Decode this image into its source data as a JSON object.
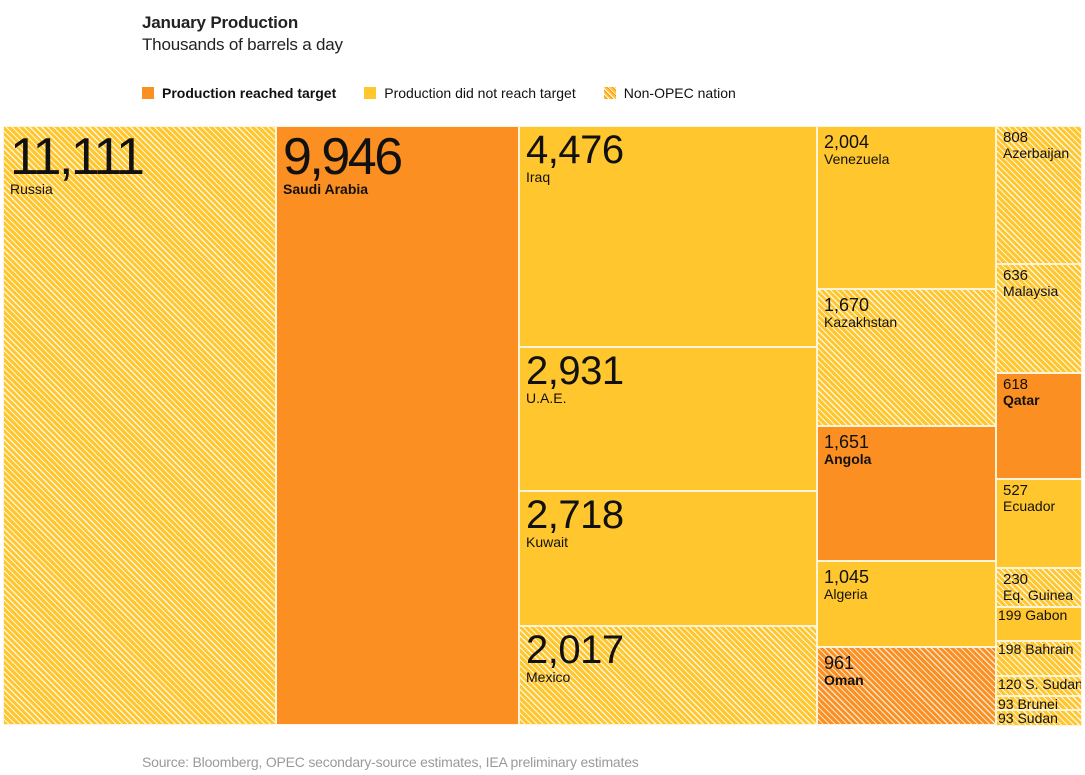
{
  "chart_data": {
    "type": "treemap",
    "title": "January Production",
    "subtitle": "Thousands of barrels a day",
    "legend": [
      {
        "key": "reached",
        "label": "Production reached target",
        "color": "#fb8f21"
      },
      {
        "key": "notreached",
        "label": "Production did not reach target",
        "color": "#ffc62e"
      },
      {
        "key": "nonopec",
        "label": "Non-OPEC nation",
        "pattern": "diagonal-hatch"
      }
    ],
    "legend_position": "top-left",
    "source": "Source: Bloomberg, OPEC secondary-source estimates, IEA preliminary estimates",
    "units": "thousand barrels per day",
    "items": [
      {
        "name": "Russia",
        "value": 11111,
        "label": "11,111",
        "status": "notreached",
        "non_opec": true
      },
      {
        "name": "Saudi Arabia",
        "value": 9946,
        "label": "9,946",
        "status": "reached",
        "non_opec": false
      },
      {
        "name": "Iraq",
        "value": 4476,
        "label": "4,476",
        "status": "notreached",
        "non_opec": false
      },
      {
        "name": "U.A.E.",
        "value": 2931,
        "label": "2,931",
        "status": "notreached",
        "non_opec": false
      },
      {
        "name": "Kuwait",
        "value": 2718,
        "label": "2,718",
        "status": "notreached",
        "non_opec": false
      },
      {
        "name": "Mexico",
        "value": 2017,
        "label": "2,017",
        "status": "notreached",
        "non_opec": true
      },
      {
        "name": "Venezuela",
        "value": 2004,
        "label": "2,004",
        "status": "notreached",
        "non_opec": false
      },
      {
        "name": "Kazakhstan",
        "value": 1670,
        "label": "1,670",
        "status": "notreached",
        "non_opec": true
      },
      {
        "name": "Angola",
        "value": 1651,
        "label": "1,651",
        "status": "reached",
        "non_opec": false
      },
      {
        "name": "Algeria",
        "value": 1045,
        "label": "1,045",
        "status": "notreached",
        "non_opec": false
      },
      {
        "name": "Oman",
        "value": 961,
        "label": "961",
        "status": "reached",
        "non_opec": true
      },
      {
        "name": "Azerbaijan",
        "value": 808,
        "label": "808",
        "status": "notreached",
        "non_opec": true
      },
      {
        "name": "Malaysia",
        "value": 636,
        "label": "636",
        "status": "notreached",
        "non_opec": true
      },
      {
        "name": "Qatar",
        "value": 618,
        "label": "618",
        "status": "reached",
        "non_opec": false
      },
      {
        "name": "Ecuador",
        "value": 527,
        "label": "527",
        "status": "notreached",
        "non_opec": false
      },
      {
        "name": "Eq. Guinea",
        "value": 230,
        "label": "230",
        "status": "notreached",
        "non_opec": true
      },
      {
        "name": "Gabon",
        "value": 199,
        "label": "199 Gabon",
        "status": "notreached",
        "non_opec": false
      },
      {
        "name": "Bahrain",
        "value": 198,
        "label": "198 Bahrain",
        "status": "notreached",
        "non_opec": true
      },
      {
        "name": "S. Sudan",
        "value": 120,
        "label": "120 S. Sudan",
        "status": "notreached",
        "non_opec": true
      },
      {
        "name": "Brunei",
        "value": 93,
        "label": "93 Brunei",
        "status": "notreached",
        "non_opec": true
      },
      {
        "name": "Sudan",
        "value": 93,
        "label": "93 Sudan",
        "status": "notreached",
        "non_opec": true
      }
    ]
  }
}
